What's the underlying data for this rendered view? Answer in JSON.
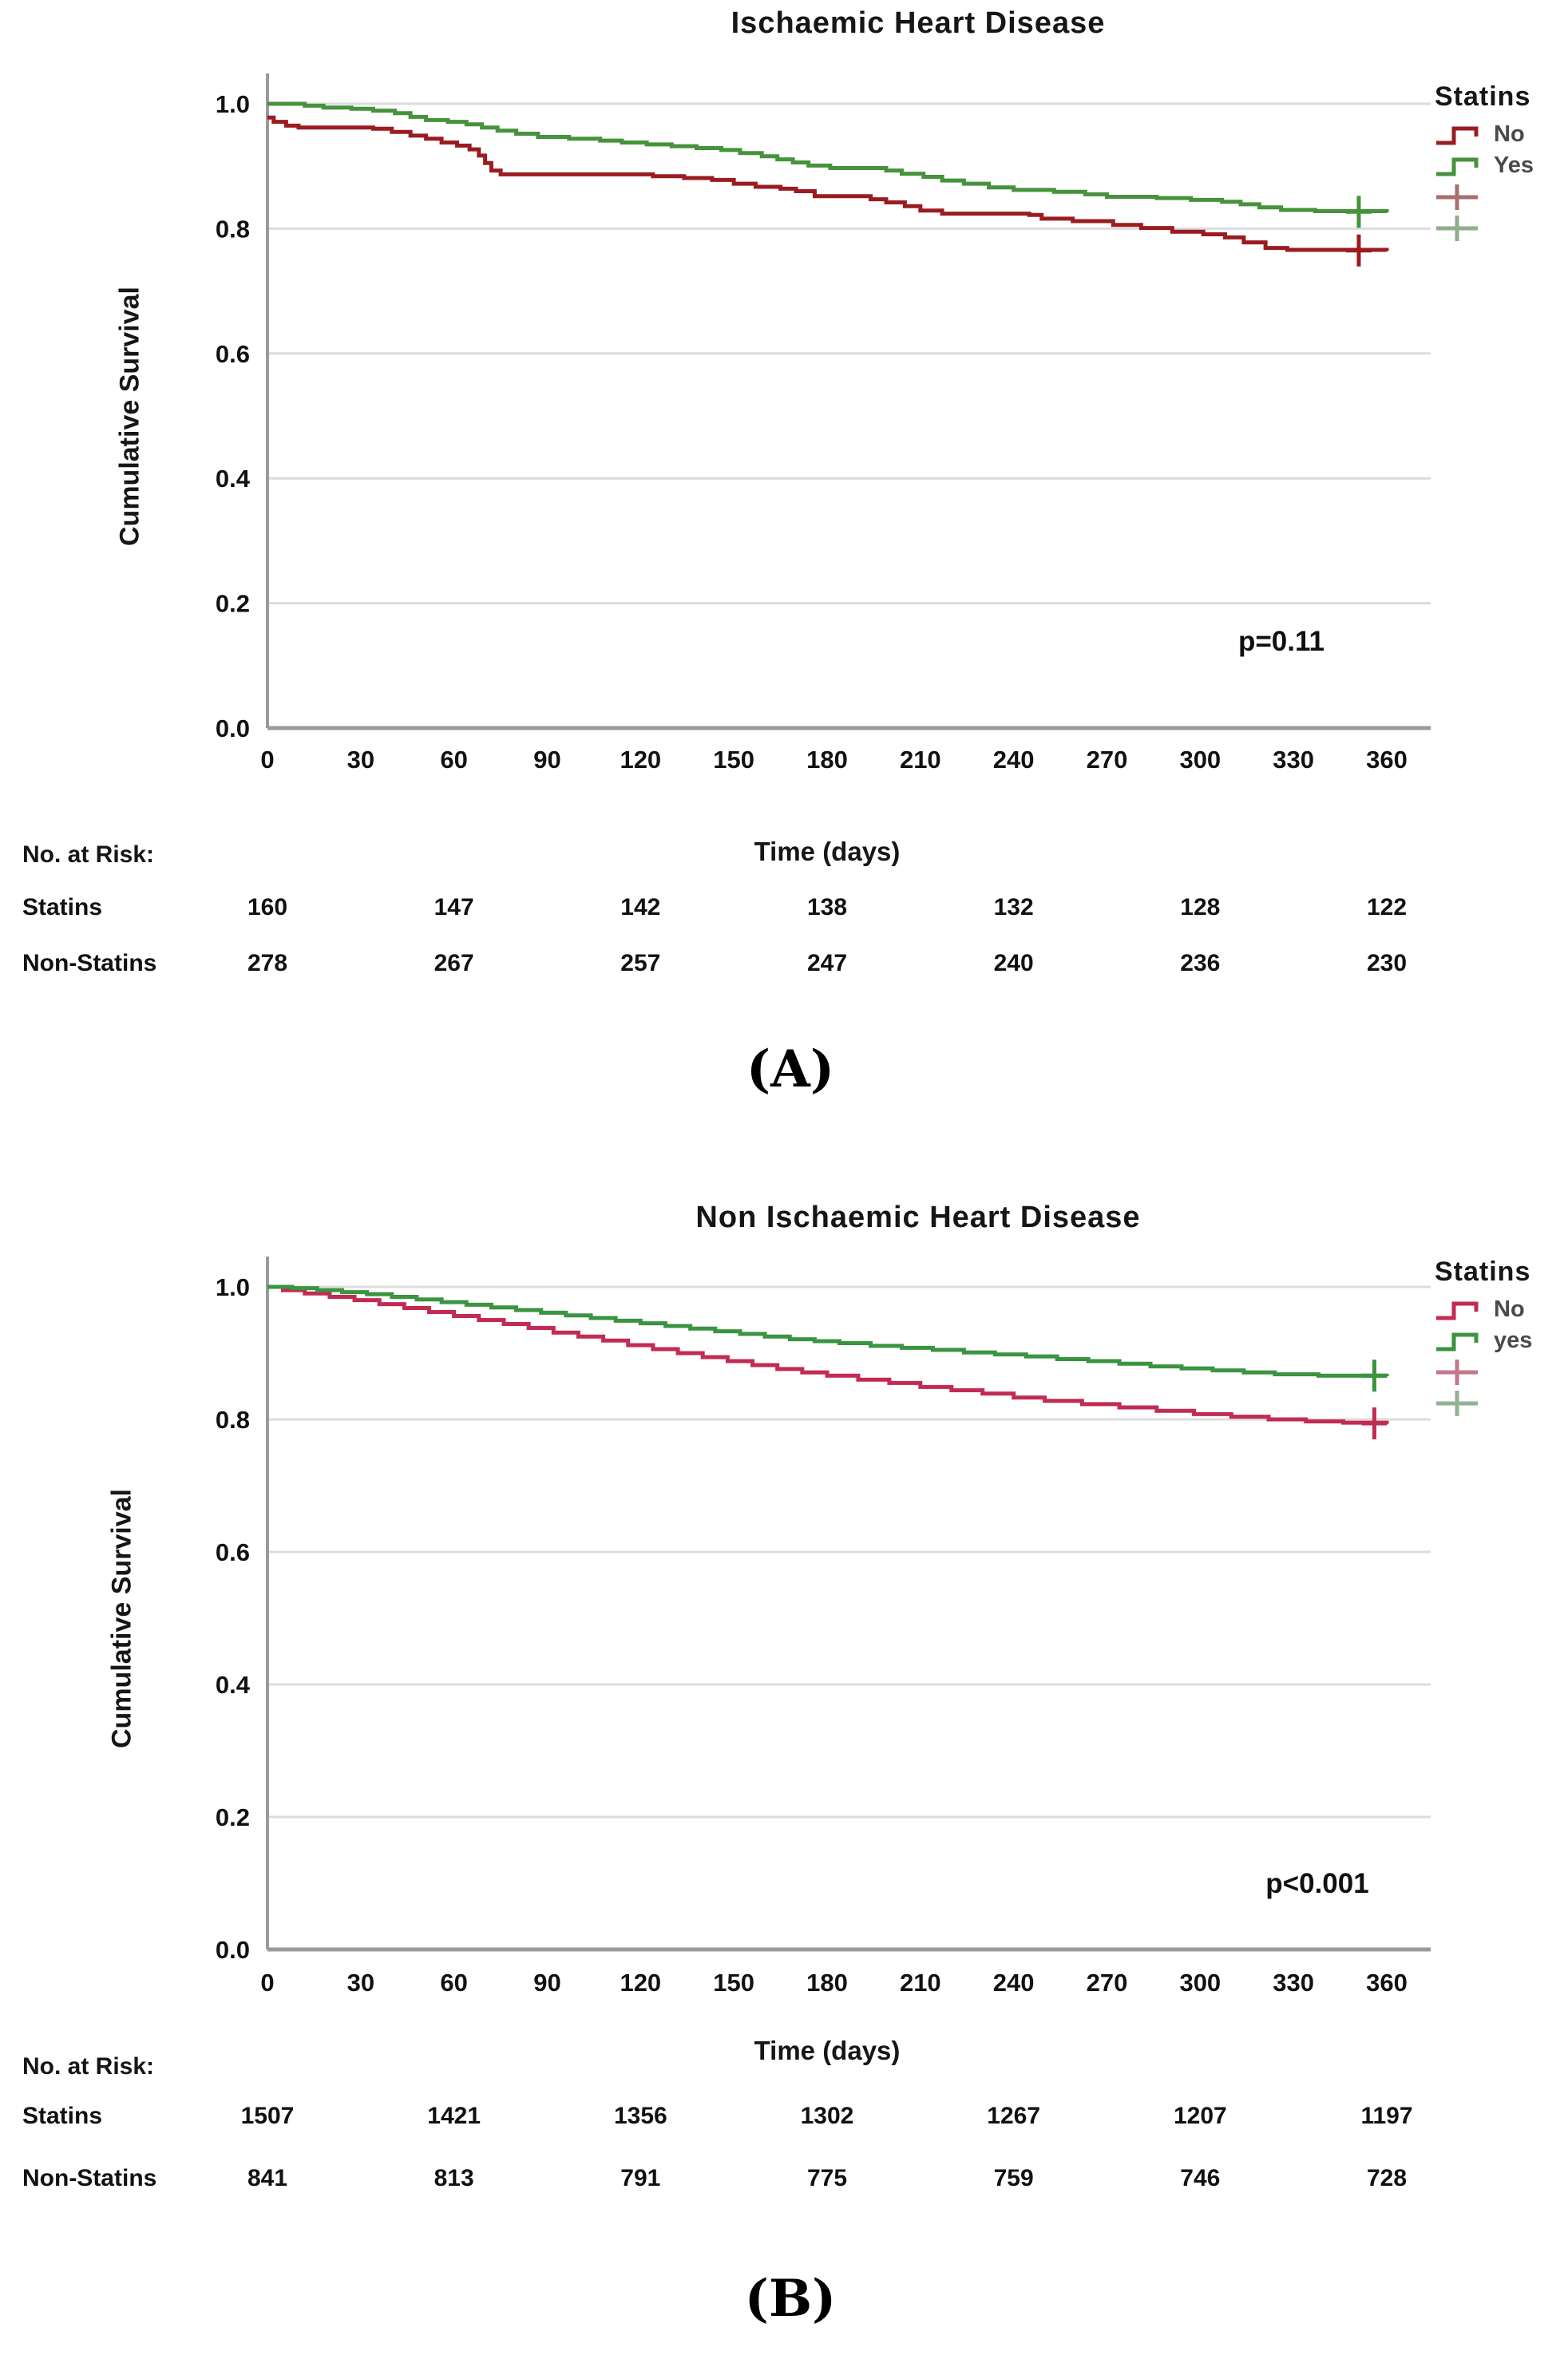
{
  "figure": {
    "panel_labels": [
      "(A)",
      "(B)"
    ]
  },
  "chart_data": [
    {
      "type": "line",
      "subtype": "kaplan_meier_step",
      "title": "Ischaemic Heart Disease",
      "xlabel": "Time (days)",
      "ylabel": "Cumulative Survival",
      "annotation": "p=0.11",
      "xlim": [
        0,
        360
      ],
      "ylim": [
        0.0,
        1.0
      ],
      "xticks": [
        0,
        30,
        60,
        90,
        120,
        150,
        180,
        210,
        240,
        270,
        300,
        330,
        360
      ],
      "yticks": [
        0.0,
        0.2,
        0.4,
        0.6,
        0.8,
        1.0
      ],
      "grid": "horizontal",
      "legend": {
        "title": "Statins",
        "position": "top-right",
        "entries": [
          {
            "glyph": "step",
            "color": "#9b1c20",
            "label": "No"
          },
          {
            "glyph": "step",
            "color": "#47923c",
            "label": "Yes"
          },
          {
            "glyph": "plus",
            "color": "#a96f6f",
            "label": ""
          },
          {
            "glyph": "plus",
            "color": "#8fae8a",
            "label": ""
          }
        ]
      },
      "series": [
        {
          "name": "No",
          "color": "#9b1c20",
          "censor": [
            [
              351,
              0.765
            ]
          ],
          "points": [
            [
              0,
              0.978
            ],
            [
              2,
              0.971
            ],
            [
              6,
              0.965
            ],
            [
              10,
              0.962
            ],
            [
              34,
              0.96
            ],
            [
              40,
              0.955
            ],
            [
              46,
              0.949
            ],
            [
              51,
              0.944
            ],
            [
              56,
              0.938
            ],
            [
              61,
              0.933
            ],
            [
              65,
              0.927
            ],
            [
              68,
              0.917
            ],
            [
              70,
              0.905
            ],
            [
              72,
              0.893
            ],
            [
              75,
              0.887
            ],
            [
              118,
              0.887
            ],
            [
              124,
              0.884
            ],
            [
              134,
              0.881
            ],
            [
              143,
              0.878
            ],
            [
              150,
              0.872
            ],
            [
              157,
              0.867
            ],
            [
              165,
              0.864
            ],
            [
              170,
              0.86
            ],
            [
              176,
              0.852
            ],
            [
              194,
              0.847
            ],
            [
              199,
              0.842
            ],
            [
              205,
              0.836
            ],
            [
              210,
              0.829
            ],
            [
              217,
              0.824
            ],
            [
              245,
              0.822
            ],
            [
              249,
              0.816
            ],
            [
              259,
              0.812
            ],
            [
              272,
              0.806
            ],
            [
              281,
              0.801
            ],
            [
              291,
              0.795
            ],
            [
              301,
              0.791
            ],
            [
              308,
              0.786
            ],
            [
              314,
              0.778
            ],
            [
              321,
              0.769
            ],
            [
              328,
              0.766
            ],
            [
              360,
              0.764
            ]
          ]
        },
        {
          "name": "Yes",
          "color": "#47923c",
          "censor": [
            [
              351,
              0.827
            ]
          ],
          "points": [
            [
              0,
              1.0
            ],
            [
              12,
              0.997
            ],
            [
              18,
              0.994
            ],
            [
              27,
              0.992
            ],
            [
              34,
              0.989
            ],
            [
              41,
              0.985
            ],
            [
              46,
              0.979
            ],
            [
              51,
              0.974
            ],
            [
              58,
              0.971
            ],
            [
              64,
              0.967
            ],
            [
              69,
              0.962
            ],
            [
              74,
              0.957
            ],
            [
              80,
              0.952
            ],
            [
              87,
              0.947
            ],
            [
              97,
              0.944
            ],
            [
              107,
              0.941
            ],
            [
              114,
              0.938
            ],
            [
              122,
              0.935
            ],
            [
              130,
              0.932
            ],
            [
              138,
              0.929
            ],
            [
              146,
              0.926
            ],
            [
              152,
              0.921
            ],
            [
              159,
              0.916
            ],
            [
              164,
              0.911
            ],
            [
              169,
              0.906
            ],
            [
              174,
              0.901
            ],
            [
              181,
              0.897
            ],
            [
              199,
              0.893
            ],
            [
              204,
              0.888
            ],
            [
              211,
              0.883
            ],
            [
              217,
              0.877
            ],
            [
              224,
              0.872
            ],
            [
              232,
              0.866
            ],
            [
              240,
              0.862
            ],
            [
              253,
              0.859
            ],
            [
              263,
              0.855
            ],
            [
              270,
              0.851
            ],
            [
              286,
              0.849
            ],
            [
              297,
              0.846
            ],
            [
              307,
              0.843
            ],
            [
              313,
              0.839
            ],
            [
              319,
              0.834
            ],
            [
              326,
              0.83
            ],
            [
              337,
              0.828
            ],
            [
              360,
              0.826
            ]
          ]
        }
      ],
      "risk_table": {
        "header": "No. at Risk:",
        "columns_days": [
          0,
          60,
          120,
          180,
          240,
          300,
          360
        ],
        "rows": [
          {
            "label": "Statins",
            "values": [
              160,
              147,
              142,
              138,
              132,
              128,
              122
            ]
          },
          {
            "label": "Non-Statins",
            "values": [
              278,
              267,
              257,
              247,
              240,
              236,
              230
            ]
          }
        ]
      }
    },
    {
      "type": "line",
      "subtype": "kaplan_meier_step",
      "title": "Non Ischaemic Heart Disease",
      "xlabel": "Time (days)",
      "ylabel": "Cumulative Survival",
      "annotation": "p<0.001",
      "xlim": [
        0,
        360
      ],
      "ylim": [
        0.0,
        1.0
      ],
      "xticks": [
        0,
        30,
        60,
        90,
        120,
        150,
        180,
        210,
        240,
        270,
        300,
        330,
        360
      ],
      "yticks": [
        0.0,
        0.2,
        0.4,
        0.6,
        0.8,
        1.0
      ],
      "grid": "horizontal",
      "legend": {
        "title": "Statins",
        "position": "top-right",
        "entries": [
          {
            "glyph": "step",
            "color": "#c22b54",
            "label": "No"
          },
          {
            "glyph": "step",
            "color": "#3b9440",
            "label": "yes"
          },
          {
            "glyph": "plus",
            "color": "#c4788c",
            "label": ""
          },
          {
            "glyph": "plus",
            "color": "#92b392",
            "label": ""
          }
        ]
      },
      "series": [
        {
          "name": "No",
          "color": "#c22b54",
          "censor": [
            [
              356,
              0.794
            ]
          ],
          "points": [
            [
              0,
              1.0
            ],
            [
              5,
              0.995
            ],
            [
              12,
              0.99
            ],
            [
              20,
              0.985
            ],
            [
              28,
              0.98
            ],
            [
              36,
              0.974
            ],
            [
              44,
              0.968
            ],
            [
              52,
              0.962
            ],
            [
              60,
              0.956
            ],
            [
              68,
              0.95
            ],
            [
              76,
              0.944
            ],
            [
              84,
              0.938
            ],
            [
              92,
              0.931
            ],
            [
              100,
              0.925
            ],
            [
              108,
              0.919
            ],
            [
              116,
              0.912
            ],
            [
              124,
              0.906
            ],
            [
              132,
              0.9
            ],
            [
              140,
              0.894
            ],
            [
              148,
              0.888
            ],
            [
              156,
              0.882
            ],
            [
              164,
              0.876
            ],
            [
              172,
              0.871
            ],
            [
              180,
              0.866
            ],
            [
              190,
              0.86
            ],
            [
              200,
              0.855
            ],
            [
              210,
              0.849
            ],
            [
              220,
              0.844
            ],
            [
              230,
              0.839
            ],
            [
              240,
              0.833
            ],
            [
              250,
              0.828
            ],
            [
              262,
              0.823
            ],
            [
              274,
              0.818
            ],
            [
              286,
              0.813
            ],
            [
              298,
              0.808
            ],
            [
              310,
              0.804
            ],
            [
              322,
              0.8
            ],
            [
              334,
              0.797
            ],
            [
              346,
              0.795
            ],
            [
              360,
              0.793
            ]
          ]
        },
        {
          "name": "yes",
          "color": "#3b9440",
          "censor": [
            [
              356,
              0.866
            ]
          ],
          "points": [
            [
              0,
              1.0
            ],
            [
              8,
              0.998
            ],
            [
              16,
              0.995
            ],
            [
              24,
              0.992
            ],
            [
              32,
              0.989
            ],
            [
              40,
              0.985
            ],
            [
              48,
              0.981
            ],
            [
              56,
              0.977
            ],
            [
              64,
              0.973
            ],
            [
              72,
              0.969
            ],
            [
              80,
              0.965
            ],
            [
              88,
              0.961
            ],
            [
              96,
              0.957
            ],
            [
              104,
              0.953
            ],
            [
              112,
              0.949
            ],
            [
              120,
              0.945
            ],
            [
              128,
              0.941
            ],
            [
              136,
              0.937
            ],
            [
              144,
              0.933
            ],
            [
              152,
              0.929
            ],
            [
              160,
              0.925
            ],
            [
              168,
              0.921
            ],
            [
              176,
              0.918
            ],
            [
              184,
              0.915
            ],
            [
              194,
              0.911
            ],
            [
              204,
              0.908
            ],
            [
              214,
              0.905
            ],
            [
              224,
              0.901
            ],
            [
              234,
              0.898
            ],
            [
              244,
              0.895
            ],
            [
              254,
              0.891
            ],
            [
              264,
              0.888
            ],
            [
              274,
              0.884
            ],
            [
              284,
              0.88
            ],
            [
              294,
              0.877
            ],
            [
              304,
              0.874
            ],
            [
              314,
              0.871
            ],
            [
              324,
              0.868
            ],
            [
              338,
              0.866
            ],
            [
              360,
              0.865
            ]
          ]
        }
      ],
      "risk_table": {
        "header": "No. at Risk:",
        "columns_days": [
          0,
          60,
          120,
          180,
          240,
          300,
          360
        ],
        "rows": [
          {
            "label": "Statins",
            "values": [
              1507,
              1421,
              1356,
              1302,
              1267,
              1207,
              1197
            ]
          },
          {
            "label": "Non-Statins",
            "values": [
              841,
              813,
              791,
              775,
              759,
              746,
              728
            ]
          }
        ]
      }
    }
  ]
}
